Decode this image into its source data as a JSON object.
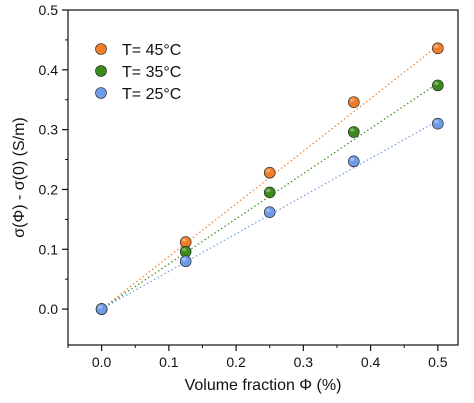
{
  "chart_data": {
    "type": "scatter",
    "xlabel": "Volume fraction Φ (%)",
    "ylabel": "σ(Φ) - σ(0) (S/m)",
    "xlim": [
      -0.05,
      0.53
    ],
    "ylim": [
      -0.06,
      0.5
    ],
    "x_ticks": [
      "0.0",
      "0.1",
      "0.2",
      "0.3",
      "0.4",
      "0.5"
    ],
    "y_ticks": [
      "0.0",
      "0.1",
      "0.2",
      "0.3",
      "0.4",
      "0.5"
    ],
    "legend_position": "top-left",
    "grid": false,
    "fit_lines": "dotted",
    "series": [
      {
        "name": "T= 45°C",
        "color": "#f07d2a",
        "x": [
          0.0,
          0.125,
          0.25,
          0.375,
          0.5
        ],
        "y": [
          0.0,
          0.112,
          0.228,
          0.346,
          0.436
        ],
        "fit": [
          0.0,
          0.88
        ]
      },
      {
        "name": "T= 35°C",
        "color": "#3a8a1c",
        "x": [
          0.0,
          0.125,
          0.25,
          0.375,
          0.5
        ],
        "y": [
          0.0,
          0.096,
          0.195,
          0.296,
          0.374
        ],
        "fit": [
          0.0,
          0.755
        ]
      },
      {
        "name": "T= 25°C",
        "color": "#6f9ae6",
        "x": [
          0.0,
          0.125,
          0.25,
          0.375,
          0.5
        ],
        "y": [
          0.0,
          0.08,
          0.162,
          0.247,
          0.31
        ],
        "fit": [
          0.0,
          0.63
        ]
      }
    ]
  }
}
